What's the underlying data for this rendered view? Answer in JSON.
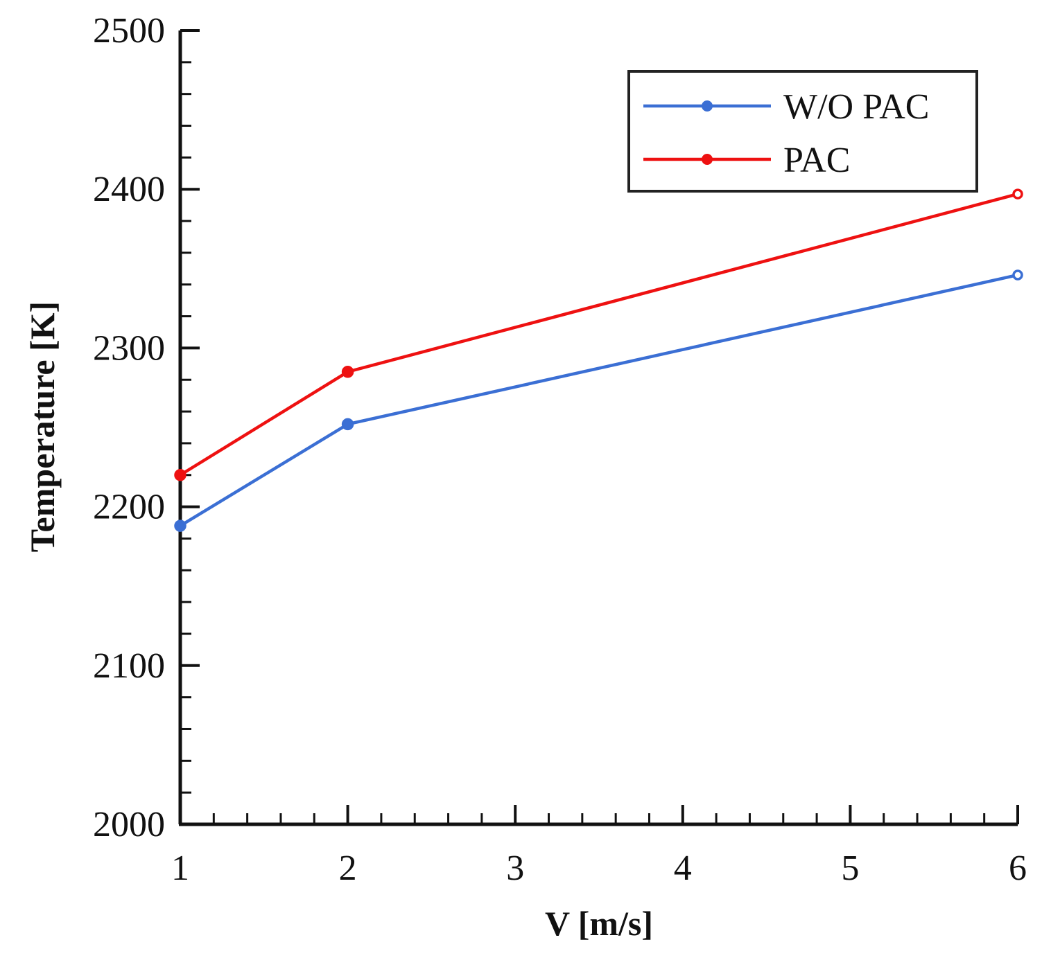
{
  "chart_data": {
    "type": "line",
    "title": "",
    "xlabel": "V [m/s]",
    "ylabel": "Temperature [K]",
    "xlim": [
      1,
      6
    ],
    "ylim": [
      2000,
      2500
    ],
    "x_ticks": [
      1,
      2,
      3,
      4,
      5,
      6
    ],
    "y_ticks": [
      2000,
      2100,
      2200,
      2300,
      2400,
      2500
    ],
    "x_minor_step": 0.2,
    "y_minor_step": 20,
    "grid": false,
    "legend_position": "top-right",
    "series": [
      {
        "name": "W/O PAC",
        "color": "#3b6fd4",
        "x": [
          1,
          2,
          6
        ],
        "values": [
          2188,
          2252,
          2346
        ]
      },
      {
        "name": "PAC",
        "color": "#ee1111",
        "x": [
          1,
          2,
          6
        ],
        "values": [
          2220,
          2285,
          2397
        ]
      }
    ]
  }
}
